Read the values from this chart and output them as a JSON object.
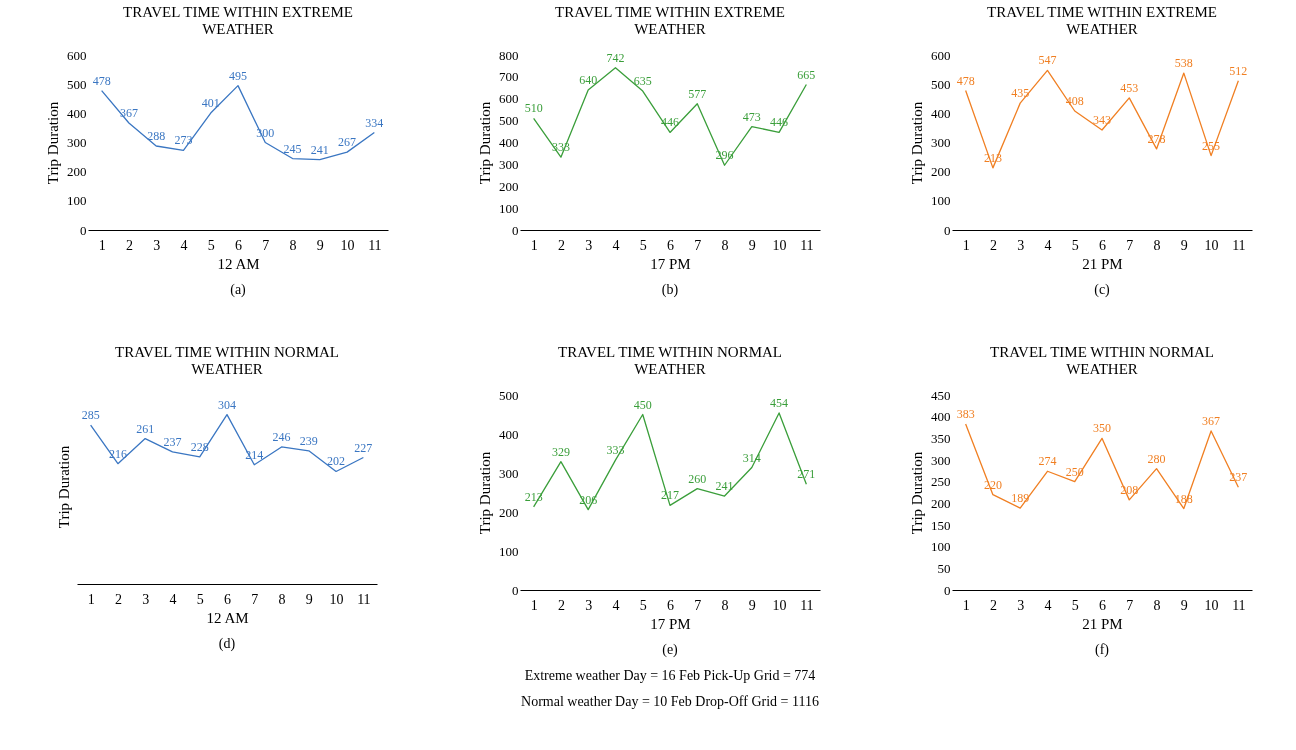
{
  "chart_data": [
    {
      "type": "line",
      "title": "TRAVEL TIME WITHIN EXTREME WEATHER",
      "xlabel": "12 AM",
      "ylabel": "Trip Duration",
      "categories": [
        "1",
        "2",
        "3",
        "4",
        "5",
        "6",
        "7",
        "8",
        "9",
        "10",
        "11"
      ],
      "series": [
        {
          "color": "#3a76c2",
          "values": [
            478,
            367,
            288,
            273,
            401,
            495,
            300,
            245,
            241,
            267,
            334
          ]
        }
      ],
      "ylim": [
        0,
        600
      ],
      "yticks": [
        0,
        100,
        200,
        300,
        400,
        500,
        600
      ],
      "data_labels": true,
      "annotations": [
        "(a)"
      ]
    },
    {
      "type": "line",
      "title": "TRAVEL TIME WITHIN EXTREME WEATHER",
      "xlabel": "17 PM",
      "ylabel": "Trip Duration",
      "categories": [
        "1",
        "2",
        "3",
        "4",
        "5",
        "6",
        "7",
        "8",
        "9",
        "10",
        "11"
      ],
      "series": [
        {
          "color": "#3a9e3a",
          "values": [
            510,
            333,
            640,
            742,
            635,
            446,
            577,
            296,
            473,
            446,
            665
          ]
        }
      ],
      "ylim": [
        0,
        800
      ],
      "yticks": [
        0,
        100,
        200,
        300,
        400,
        500,
        600,
        700,
        800
      ],
      "data_labels": true,
      "annotations": [
        "(b)"
      ]
    },
    {
      "type": "line",
      "title": "TRAVEL TIME WITHIN EXTREME WEATHER",
      "xlabel": "21 PM",
      "ylabel": "Trip Duration",
      "categories": [
        "1",
        "2",
        "3",
        "4",
        "5",
        "6",
        "7",
        "8",
        "9",
        "10",
        "11"
      ],
      "series": [
        {
          "color": "#f07f22",
          "values": [
            478,
            213,
            435,
            547,
            408,
            343,
            453,
            278,
            538,
            255,
            512
          ]
        }
      ],
      "ylim": [
        0,
        600
      ],
      "yticks": [
        0,
        100,
        200,
        300,
        400,
        500,
        600
      ],
      "data_labels": true,
      "annotations": [
        "(c)"
      ]
    },
    {
      "type": "line",
      "title": "TRAVEL TIME WITHIN NORMAL WEATHER",
      "xlabel": "12 AM",
      "ylabel": "Trip Duration",
      "categories": [
        "1",
        "2",
        "3",
        "4",
        "5",
        "6",
        "7",
        "8",
        "9",
        "10",
        "11"
      ],
      "series": [
        {
          "color": "#3a76c2",
          "values": [
            285,
            216,
            261,
            237,
            228,
            304,
            214,
            246,
            239,
            202,
            227
          ]
        }
      ],
      "tick_labels": "x",
      "data_labels": true,
      "annotations": [
        "(d)"
      ]
    },
    {
      "type": "line",
      "title": "TRAVEL TIME WITHIN NORMAL WEATHER",
      "xlabel": "17 PM",
      "ylabel": "Trip Duration",
      "categories": [
        "1",
        "2",
        "3",
        "4",
        "5",
        "6",
        "7",
        "8",
        "9",
        "10",
        "11"
      ],
      "series": [
        {
          "color": "#3a9e3a",
          "values": [
            213,
            329,
            206,
            333,
            450,
            217,
            260,
            241,
            314,
            454,
            271
          ]
        }
      ],
      "ylim": [
        0,
        500
      ],
      "yticks": [
        0,
        100,
        200,
        300,
        400,
        500
      ],
      "data_labels": true,
      "annotations": [
        "(e)",
        "Extreme weather Day = 16 Feb Pick-Up Grid = 774",
        "Normal weather Day = 10 Feb Drop-Off Grid = 1116"
      ]
    },
    {
      "type": "line",
      "title": "TRAVEL TIME WITHIN NORMAL WEATHER",
      "xlabel": "21 PM",
      "ylabel": "Trip Duration",
      "categories": [
        "1",
        "2",
        "3",
        "4",
        "5",
        "6",
        "7",
        "8",
        "9",
        "10",
        "11"
      ],
      "series": [
        {
          "color": "#f07f22",
          "values": [
            383,
            220,
            189,
            274,
            250,
            350,
            208,
            280,
            188,
            367,
            237
          ]
        }
      ],
      "ylim": [
        0,
        450
      ],
      "yticks": [
        0,
        50,
        100,
        150,
        200,
        250,
        300,
        350,
        400,
        450
      ],
      "data_labels": true,
      "annotations": [
        "(f)"
      ]
    }
  ]
}
